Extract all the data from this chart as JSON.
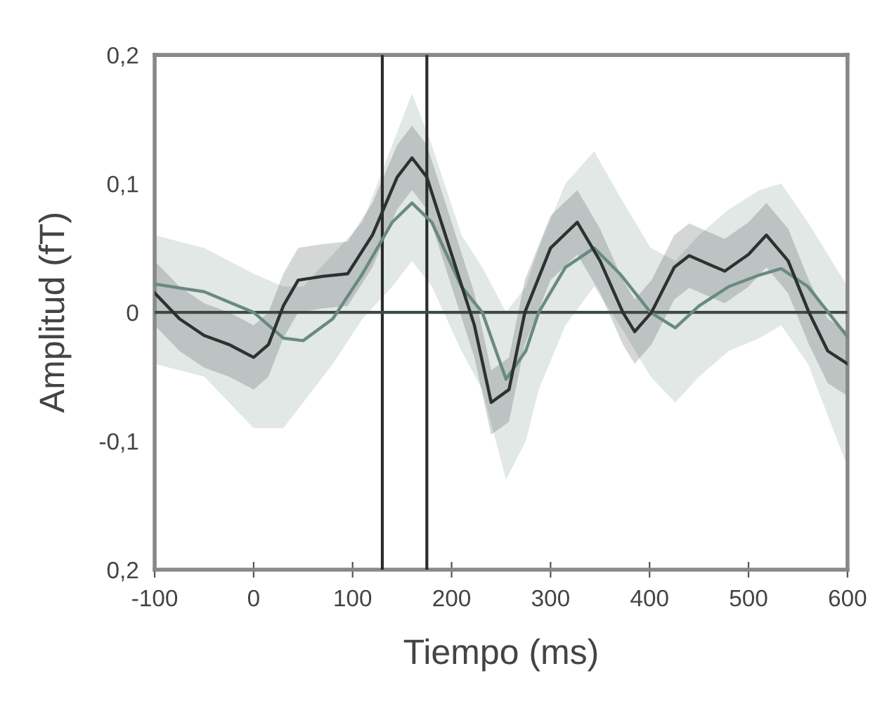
{
  "chart_data": {
    "type": "line",
    "xlabel": "Tiempo (ms)",
    "ylabel": "Amplitud (fT)",
    "xlim": [
      -100,
      600
    ],
    "xticks": [
      -100,
      0,
      100,
      200,
      300,
      400,
      500,
      600
    ],
    "ylim": [
      -0.2,
      0.2
    ],
    "yticks": [
      {
        "value": 0.2,
        "label": "0,2"
      },
      {
        "value": 0.1,
        "label": "0,1"
      },
      {
        "value": 0,
        "label": "0"
      },
      {
        "value": -0.1,
        "label": "-0,1"
      },
      {
        "value": -0.2,
        "label": "0,2"
      }
    ],
    "grid": false,
    "legend": false,
    "ref_lines": [
      {
        "axis": "x",
        "value": 130,
        "color": "#2b2b2b"
      },
      {
        "axis": "x",
        "value": 175,
        "color": "#2b2b2b"
      },
      {
        "axis": "y",
        "value": 0,
        "color": "#3f4a46"
      }
    ],
    "series": [
      {
        "color": "#6a8a80",
        "x": [
          -100,
          -50,
          0,
          30,
          50,
          80,
          110,
          140,
          160,
          180,
          210,
          231,
          255,
          275,
          288,
          315,
          344,
          370,
          401,
          426,
          450,
          480,
          511,
          533,
          560,
          600
        ],
        "values": [
          0.022,
          0.016,
          0,
          -0.02,
          -0.022,
          -0.005,
          0.03,
          0.07,
          0.085,
          0.07,
          0.02,
          0,
          -0.052,
          -0.03,
          0,
          0.035,
          0.05,
          0.03,
          0,
          -0.012,
          0.005,
          0.02,
          0.029,
          0.034,
          0.02,
          -0.019
        ],
        "lower": [
          -0.04,
          -0.05,
          -0.09,
          -0.09,
          -0.07,
          -0.04,
          -0.005,
          0.02,
          0.04,
          0.02,
          -0.03,
          -0.06,
          -0.13,
          -0.1,
          -0.06,
          -0.01,
          0.02,
          -0.01,
          -0.05,
          -0.07,
          -0.05,
          -0.03,
          -0.02,
          -0.01,
          -0.04,
          -0.12
        ],
        "upper": [
          0.06,
          0.05,
          0.03,
          0.02,
          0.02,
          0.045,
          0.07,
          0.13,
          0.17,
          0.13,
          0.06,
          0.035,
          0.0,
          0.02,
          0.05,
          0.1,
          0.125,
          0.09,
          0.05,
          0.04,
          0.06,
          0.08,
          0.095,
          0.1,
          0.07,
          0.02
        ]
      },
      {
        "color": "#2b3230",
        "x": [
          -100,
          -75,
          -50,
          -25,
          0,
          15,
          30,
          45,
          70,
          95,
          120,
          145,
          160,
          175,
          200,
          223,
          240,
          258,
          274,
          300,
          327,
          350,
          373,
          385,
          402,
          425,
          440,
          476,
          500,
          518,
          540,
          561,
          580,
          600
        ],
        "values": [
          0.015,
          -0.005,
          -0.018,
          -0.025,
          -0.035,
          -0.025,
          0.005,
          0.025,
          0.028,
          0.03,
          0.06,
          0.105,
          0.12,
          0.105,
          0.045,
          -0.01,
          -0.07,
          -0.06,
          0,
          0.05,
          0.07,
          0.04,
          0,
          -0.015,
          0,
          0.035,
          0.044,
          0.032,
          0.045,
          0.06,
          0.04,
          0,
          -0.03,
          -0.04
        ],
        "lower": [
          -0.01,
          -0.03,
          -0.043,
          -0.05,
          -0.06,
          -0.05,
          -0.02,
          0.0,
          0.003,
          0.005,
          0.035,
          0.08,
          0.095,
          0.08,
          0.02,
          -0.035,
          -0.095,
          -0.085,
          -0.025,
          0.025,
          0.045,
          0.015,
          -0.025,
          -0.04,
          -0.025,
          0.01,
          0.019,
          0.007,
          0.02,
          0.035,
          0.015,
          -0.025,
          -0.055,
          -0.065
        ],
        "upper": [
          0.04,
          0.02,
          0.007,
          0.0,
          -0.01,
          0.0,
          0.03,
          0.05,
          0.053,
          0.055,
          0.085,
          0.13,
          0.145,
          0.13,
          0.07,
          0.015,
          -0.045,
          -0.035,
          0.025,
          0.075,
          0.095,
          0.065,
          0.025,
          0.01,
          0.025,
          0.06,
          0.069,
          0.057,
          0.07,
          0.085,
          0.065,
          0.025,
          -0.005,
          -0.015
        ]
      }
    ]
  }
}
